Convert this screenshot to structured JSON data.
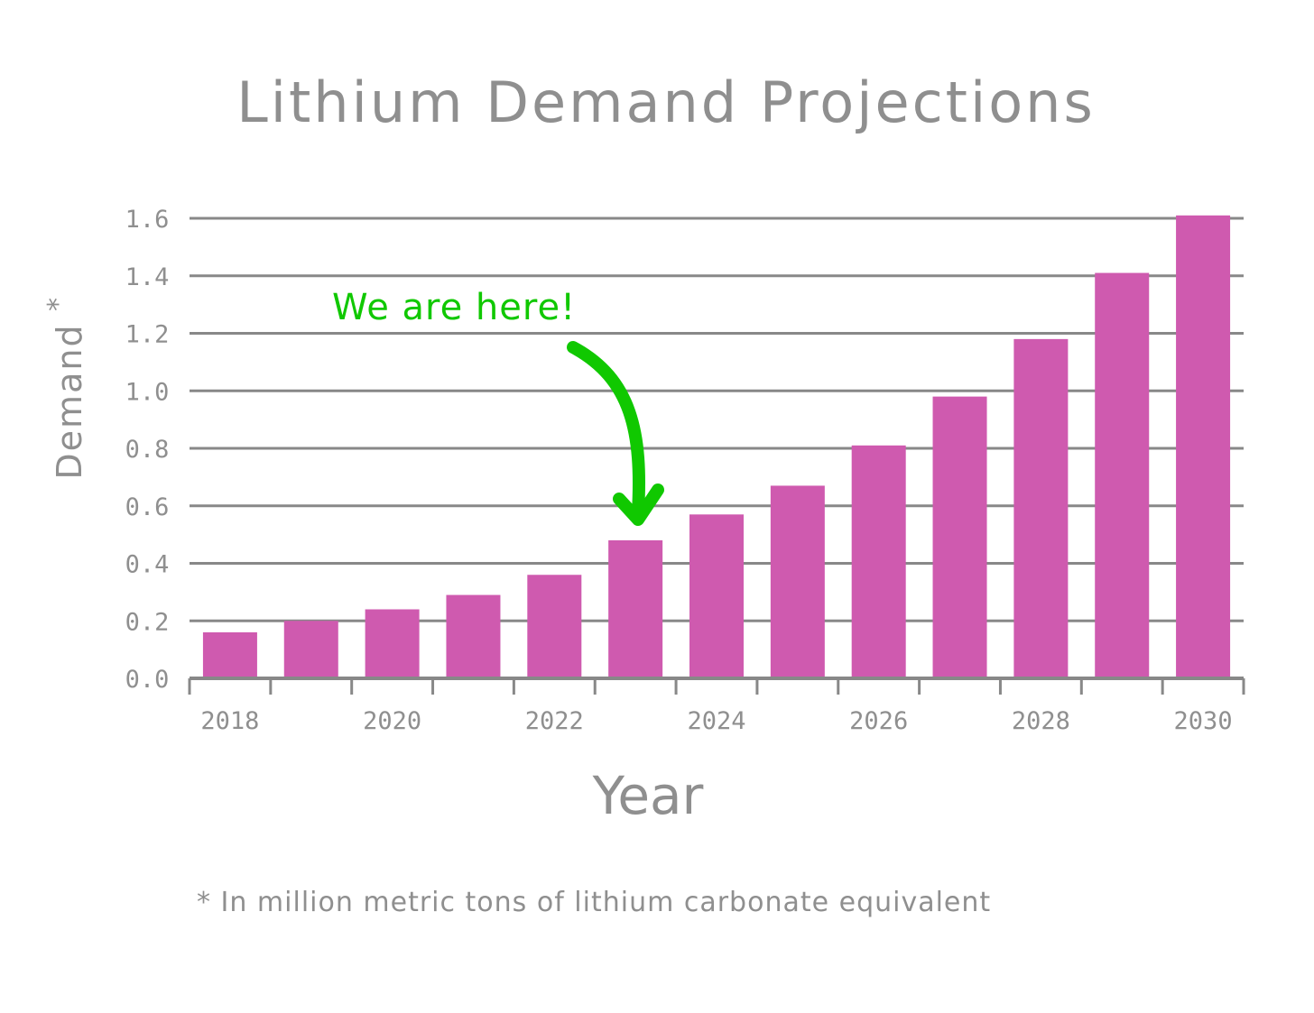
{
  "chart_data": {
    "type": "bar",
    "title": "Lithium Demand Projections",
    "xlabel": "Year",
    "ylabel": "Demand",
    "ylabel_marker": "*",
    "categories": [
      2018,
      2019,
      2020,
      2021,
      2022,
      2023,
      2024,
      2025,
      2026,
      2027,
      2028,
      2029,
      2030
    ],
    "x_tick_labels": [
      "2018",
      "2020",
      "2022",
      "2024",
      "2026",
      "2028",
      "2030"
    ],
    "values": [
      0.16,
      0.2,
      0.24,
      0.29,
      0.36,
      0.48,
      0.57,
      0.67,
      0.81,
      0.98,
      1.18,
      1.41,
      1.61
    ],
    "ylim": [
      0,
      1.6
    ],
    "y_ticks": [
      "0.0",
      "0.2",
      "0.4",
      "0.6",
      "0.8",
      "1.0",
      "1.2",
      "1.4",
      "1.6"
    ],
    "grid": "horizontal",
    "annotation": {
      "text": "We are here!",
      "points_to": 2023
    },
    "footnote": "* In million metric tons of lithium carbonate equivalent"
  },
  "colors": {
    "bar": "#cf5aaf",
    "text": "#8f8f8f",
    "grid": "#888888",
    "annotation": "#10c800"
  }
}
